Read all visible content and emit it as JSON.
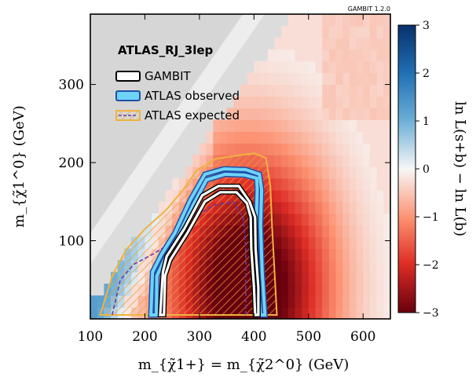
{
  "version_tag": "GAMBIT 1.2.0",
  "chart_data": {
    "type": "heatmap",
    "title": "ATLAS_RJ_3lep",
    "xlabel": "m_{χ̃1+} = m_{χ̃2^0} (GeV)",
    "ylabel": "m_{χ̃1^0} (GeV)",
    "colorbar_label": "ln L(s+b) − ln L(b)",
    "xlim": [
      100,
      650
    ],
    "ylim": [
      0,
      390
    ],
    "clim": [
      -3,
      3
    ],
    "x_ticks": [
      "100",
      "200",
      "300",
      "400",
      "500",
      "600"
    ],
    "y_ticks": [
      "100",
      "200",
      "300"
    ],
    "colorbar_ticks": [
      "3",
      "2",
      "1",
      "0",
      "−1",
      "−2",
      "−3"
    ],
    "grid": false,
    "legend_position": "top-left",
    "legend": [
      {
        "name": "GAMBIT",
        "style": "white-line-black-outline"
      },
      {
        "name": "ATLAS observed",
        "style": "cyan-line-blue-outline"
      },
      {
        "name": "ATLAS expected",
        "style": "purple-dashed-orange-hatch"
      }
    ],
    "contours": {
      "gambit": [
        [
          228,
          5
        ],
        [
          233,
          60
        ],
        [
          240,
          80
        ],
        [
          272,
          115
        ],
        [
          305,
          158
        ],
        [
          335,
          170
        ],
        [
          372,
          170
        ],
        [
          392,
          150
        ],
        [
          402,
          130
        ],
        [
          403,
          90
        ],
        [
          408,
          40
        ],
        [
          408,
          5
        ],
        [
          402,
          5
        ],
        [
          400,
          40
        ],
        [
          395,
          90
        ],
        [
          394,
          130
        ],
        [
          387,
          148
        ],
        [
          368,
          162
        ],
        [
          338,
          162
        ],
        [
          310,
          150
        ],
        [
          278,
          110
        ],
        [
          247,
          76
        ],
        [
          237,
          55
        ],
        [
          235,
          5
        ]
      ],
      "atlas_observed": [
        [
          211,
          5
        ],
        [
          214,
          60
        ],
        [
          230,
          82
        ],
        [
          255,
          110
        ],
        [
          283,
          152
        ],
        [
          310,
          185
        ],
        [
          345,
          192
        ],
        [
          385,
          191
        ],
        [
          410,
          185
        ],
        [
          414,
          165
        ],
        [
          412,
          120
        ],
        [
          415,
          60
        ],
        [
          420,
          5
        ],
        [
          412,
          5
        ],
        [
          405,
          60
        ],
        [
          404,
          120
        ],
        [
          406,
          165
        ],
        [
          405,
          180
        ],
        [
          383,
          184
        ],
        [
          347,
          185
        ],
        [
          313,
          178
        ],
        [
          288,
          145
        ],
        [
          260,
          104
        ],
        [
          236,
          76
        ],
        [
          222,
          55
        ],
        [
          221,
          5
        ]
      ],
      "atlas_expected": [
        [
          140,
          5
        ],
        [
          155,
          50
        ],
        [
          180,
          70
        ],
        [
          215,
          83
        ],
        [
          255,
          100
        ],
        [
          300,
          134
        ],
        [
          325,
          145
        ],
        [
          362,
          150
        ],
        [
          380,
          130
        ],
        [
          385,
          90
        ],
        [
          385,
          5
        ]
      ],
      "hatch_region": [
        [
          118,
          5
        ],
        [
          140,
          55
        ],
        [
          165,
          88
        ],
        [
          200,
          115
        ],
        [
          240,
          140
        ],
        [
          270,
          165
        ],
        [
          295,
          190
        ],
        [
          330,
          205
        ],
        [
          400,
          212
        ],
        [
          422,
          206
        ],
        [
          430,
          170
        ],
        [
          433,
          120
        ],
        [
          438,
          55
        ],
        [
          442,
          5
        ]
      ]
    }
  }
}
